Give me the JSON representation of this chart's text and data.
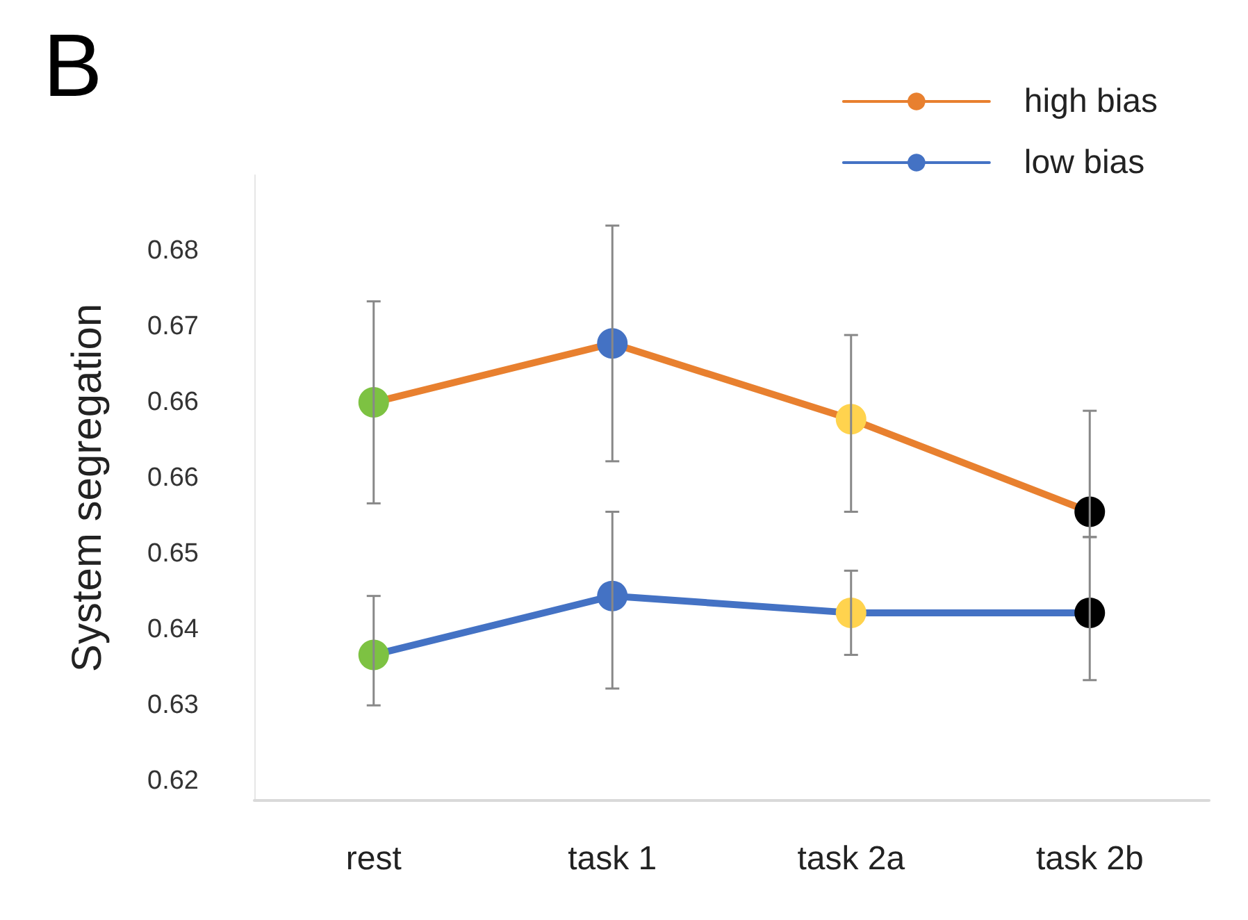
{
  "chart_data": {
    "type": "line",
    "title": "B",
    "ylabel": "System segregation",
    "categories": [
      "rest",
      "task 1",
      "task 2a",
      "task 2b"
    ],
    "series": [
      {
        "name": "high bias",
        "color": "#e8802f",
        "colors": [
          "#7dc242",
          "#4472c4",
          "#ffd34e",
          "#000000"
        ],
        "values": [
          0.665,
          0.672,
          0.663,
          0.652
        ],
        "errors": [
          [
            0.653,
            0.677
          ],
          [
            0.658,
            0.686
          ],
          [
            0.652,
            0.673
          ],
          [
            0.649,
            0.664
          ]
        ]
      },
      {
        "name": "low bias",
        "color": "#4472c4",
        "colors": [
          "#7dc242",
          "#4472c4",
          "#ffd34e",
          "#000000"
        ],
        "values": [
          0.635,
          0.642,
          0.64,
          0.64
        ],
        "errors": [
          [
            0.629,
            0.642
          ],
          [
            0.631,
            0.652
          ],
          [
            0.635,
            0.645
          ],
          [
            0.632,
            0.649
          ]
        ]
      }
    ],
    "ylim": [
      0.6177,
      0.692
    ],
    "yticks": [
      {
        "value": 0.62,
        "label": "0.62"
      },
      {
        "value": 0.629,
        "label": "0.63"
      },
      {
        "value": 0.638,
        "label": "0.64"
      },
      {
        "value": 0.647,
        "label": "0.65"
      },
      {
        "value": 0.656,
        "label": "0.66"
      },
      {
        "value": 0.665,
        "label": "0.66"
      },
      {
        "value": 0.674,
        "label": "0.67"
      },
      {
        "value": 0.683,
        "label": "0.68"
      }
    ],
    "grid": false,
    "legend": "top right",
    "marker": "circle",
    "line_style": "solid"
  }
}
